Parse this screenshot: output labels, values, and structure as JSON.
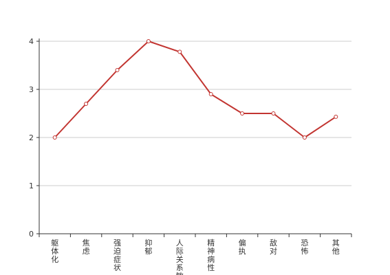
{
  "chart_data": {
    "type": "line",
    "categories": [
      "躯体化",
      "焦虑",
      "强迫症状",
      "抑郁",
      "人际关系敏感",
      "精神病性",
      "偏执",
      "敌对",
      "恐怖",
      "其他"
    ],
    "values": [
      2.0,
      2.7,
      3.4,
      4.0,
      3.78,
      2.9,
      2.5,
      2.5,
      2.0,
      2.43
    ],
    "ylim": [
      0,
      4
    ],
    "yticks": [
      0,
      1,
      2,
      3,
      4
    ],
    "grid": true,
    "line_color": "#c23531",
    "marker_fill": "#ffffff"
  }
}
